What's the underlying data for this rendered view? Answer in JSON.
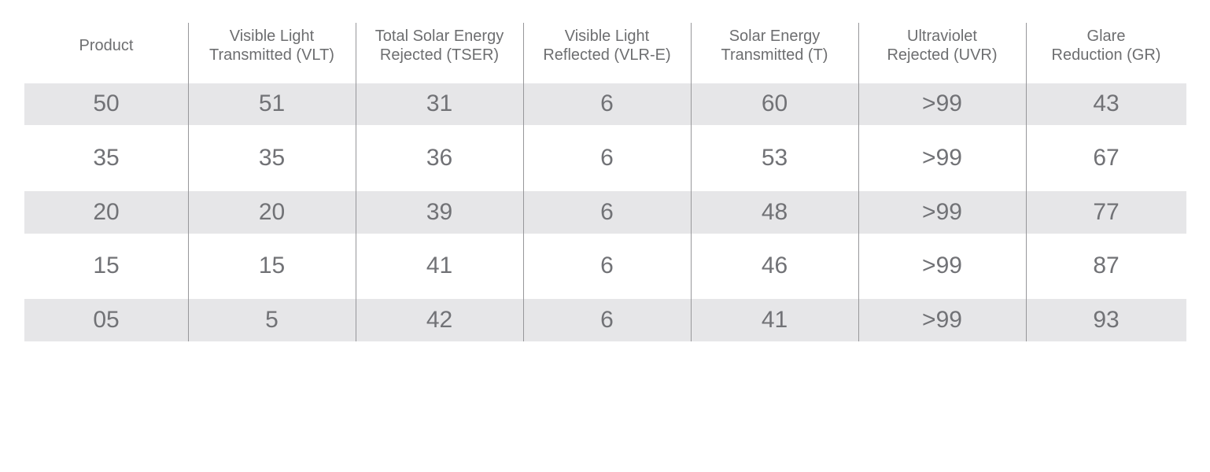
{
  "colors": {
    "background": "#ffffff",
    "stripe": "#e6e6e8",
    "divider": "#97979a",
    "header_text": "#6d6e70",
    "cell_text": "#717276"
  },
  "chart_data": {
    "type": "table",
    "title": "",
    "legend": "none",
    "grid": "vertical-dividers-only",
    "columns": [
      "Product",
      "Visible Light\nTransmitted (VLT)",
      "Total Solar Energy\nRejected (TSER)",
      "Visible Light\nReflected (VLR-E)",
      "Solar Energy\nTransmitted (T)",
      "Ultraviolet\nRejected (UVR)",
      "Glare\nReduction (GR)"
    ],
    "rows": [
      [
        "50",
        "51",
        "31",
        "6",
        "60",
        ">99",
        "43"
      ],
      [
        "35",
        "35",
        "36",
        "6",
        "53",
        ">99",
        "67"
      ],
      [
        "20",
        "20",
        "39",
        "6",
        "48",
        ">99",
        "77"
      ],
      [
        "15",
        "15",
        "41",
        "6",
        "46",
        ">99",
        "87"
      ],
      [
        "05",
        "5",
        "42",
        "6",
        "41",
        ">99",
        "93"
      ]
    ]
  }
}
